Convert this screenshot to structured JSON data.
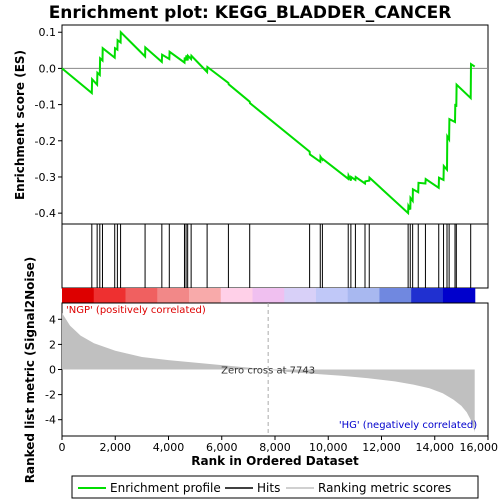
{
  "chart_data": {
    "type": "line",
    "title": "Enrichment plot: KEGG_BLADDER_CANCER",
    "top_panel": {
      "ylabel": "Enrichment score (ES)",
      "ylim": [
        -0.43,
        0.12
      ],
      "yticks": [
        0.1,
        0.0,
        -0.1,
        -0.2,
        -0.3,
        -0.4
      ],
      "ytick_labels": [
        "0.1",
        "0.0",
        "-0.1",
        "-0.2",
        "-0.3",
        "-0.4"
      ],
      "series": [
        {
          "name": "Enrichment profile",
          "color": "#00dd00",
          "x": [
            0,
            1120,
            1130,
            1320,
            1330,
            1420,
            1430,
            1520,
            1530,
            1980,
            1990,
            2080,
            2090,
            2200,
            2210,
            3120,
            3130,
            3750,
            3760,
            4030,
            4040,
            4600,
            4610,
            4660,
            4670,
            4720,
            4730,
            4850,
            4860,
            5450,
            5460,
            6250,
            6260,
            7050,
            7060,
            9300,
            9310,
            9700,
            9710,
            9780,
            9790,
            10750,
            10760,
            10850,
            10860,
            11020,
            11030,
            11380,
            11390,
            11540,
            11550,
            13000,
            13010,
            13080,
            13090,
            13170,
            13180,
            13380,
            13390,
            13650,
            13660,
            14150,
            14160,
            14330,
            14340,
            14460,
            14470,
            14540,
            14550,
            14760,
            14770,
            14810,
            14820,
            15350,
            15360,
            15500
          ],
          "y": [
            0.0,
            -0.068,
            -0.03,
            -0.045,
            -0.012,
            -0.018,
            0.028,
            0.022,
            0.056,
            0.03,
            0.056,
            0.052,
            0.078,
            0.072,
            0.1,
            0.033,
            0.058,
            0.018,
            0.038,
            0.026,
            0.046,
            0.016,
            0.03,
            0.022,
            0.036,
            0.022,
            0.035,
            0.026,
            0.035,
            -0.01,
            0.004,
            -0.04,
            -0.044,
            -0.092,
            -0.096,
            -0.23,
            -0.238,
            -0.258,
            -0.244,
            -0.252,
            -0.25,
            -0.305,
            -0.296,
            -0.31,
            -0.3,
            -0.308,
            -0.3,
            -0.318,
            -0.312,
            -0.31,
            -0.302,
            -0.4,
            -0.38,
            -0.39,
            -0.358,
            -0.366,
            -0.334,
            -0.342,
            -0.316,
            -0.318,
            -0.306,
            -0.33,
            -0.302,
            -0.308,
            -0.27,
            -0.28,
            -0.188,
            -0.196,
            -0.14,
            -0.148,
            -0.098,
            -0.106,
            -0.045,
            -0.082,
            0.012,
            0.005
          ]
        }
      ]
    },
    "hits": [
      1120,
      1320,
      1420,
      1520,
      1980,
      2080,
      2200,
      3120,
      3750,
      4030,
      4600,
      4660,
      4720,
      4850,
      5450,
      6250,
      7050,
      9300,
      9700,
      9780,
      10750,
      10850,
      11020,
      11380,
      11540,
      13000,
      13080,
      13170,
      13380,
      13650,
      14150,
      14330,
      14460,
      14540,
      14760,
      14810,
      15350
    ],
    "bottom_panel": {
      "ylabel": "Ranked list metric (Signal2Noise)",
      "xlabel": "Rank in Ordered Dataset",
      "xlim": [
        0,
        16000
      ],
      "xticks": [
        0,
        2000,
        4000,
        6000,
        8000,
        10000,
        12000,
        14000,
        16000
      ],
      "xtick_labels": [
        "0",
        "2,000",
        "4,000",
        "6,000",
        "8,000",
        "10,000",
        "12,000",
        "14,000",
        "16,000"
      ],
      "ylim": [
        -5.3,
        5.3
      ],
      "yticks": [
        4,
        2,
        0,
        -2,
        -4
      ],
      "ytick_labels": [
        "4",
        "2",
        "0",
        "-2",
        "-4"
      ],
      "metric_x": [
        0,
        300,
        700,
        1200,
        2000,
        3000,
        4000,
        5000,
        6000,
        7000,
        7743,
        8500,
        9500,
        10500,
        11500,
        12500,
        13200,
        13800,
        14300,
        14700,
        15000,
        15200,
        15400,
        15500
      ],
      "metric_y": [
        4.5,
        3.5,
        2.7,
        2.1,
        1.5,
        1.0,
        0.75,
        0.55,
        0.35,
        0.15,
        0.0,
        -0.2,
        -0.35,
        -0.5,
        -0.7,
        -0.95,
        -1.2,
        -1.5,
        -1.9,
        -2.4,
        -2.9,
        -3.4,
        -4.2,
        -5.0
      ]
    },
    "zero_cross": 7743,
    "zero_cross_label": "Zero cross at 7743",
    "pos_label": "'NGP' (positively correlated)",
    "neg_label": "'HG' (negatively correlated)",
    "colorbar_colors": [
      "#dd0000",
      "#ee3030",
      "#f06060",
      "#f28888",
      "#f8aaaa",
      "#ffd0e8",
      "#f0c0f0",
      "#d8d0f8",
      "#c0c8f8",
      "#a8b8f0",
      "#7088e0",
      "#2030d0",
      "#0000cc"
    ],
    "legend": [
      {
        "label": "Enrichment profile",
        "color": "#00dd00"
      },
      {
        "label": "Hits",
        "color": "#000000"
      },
      {
        "label": "Ranking metric scores",
        "color": "#c0c0c0"
      }
    ]
  }
}
